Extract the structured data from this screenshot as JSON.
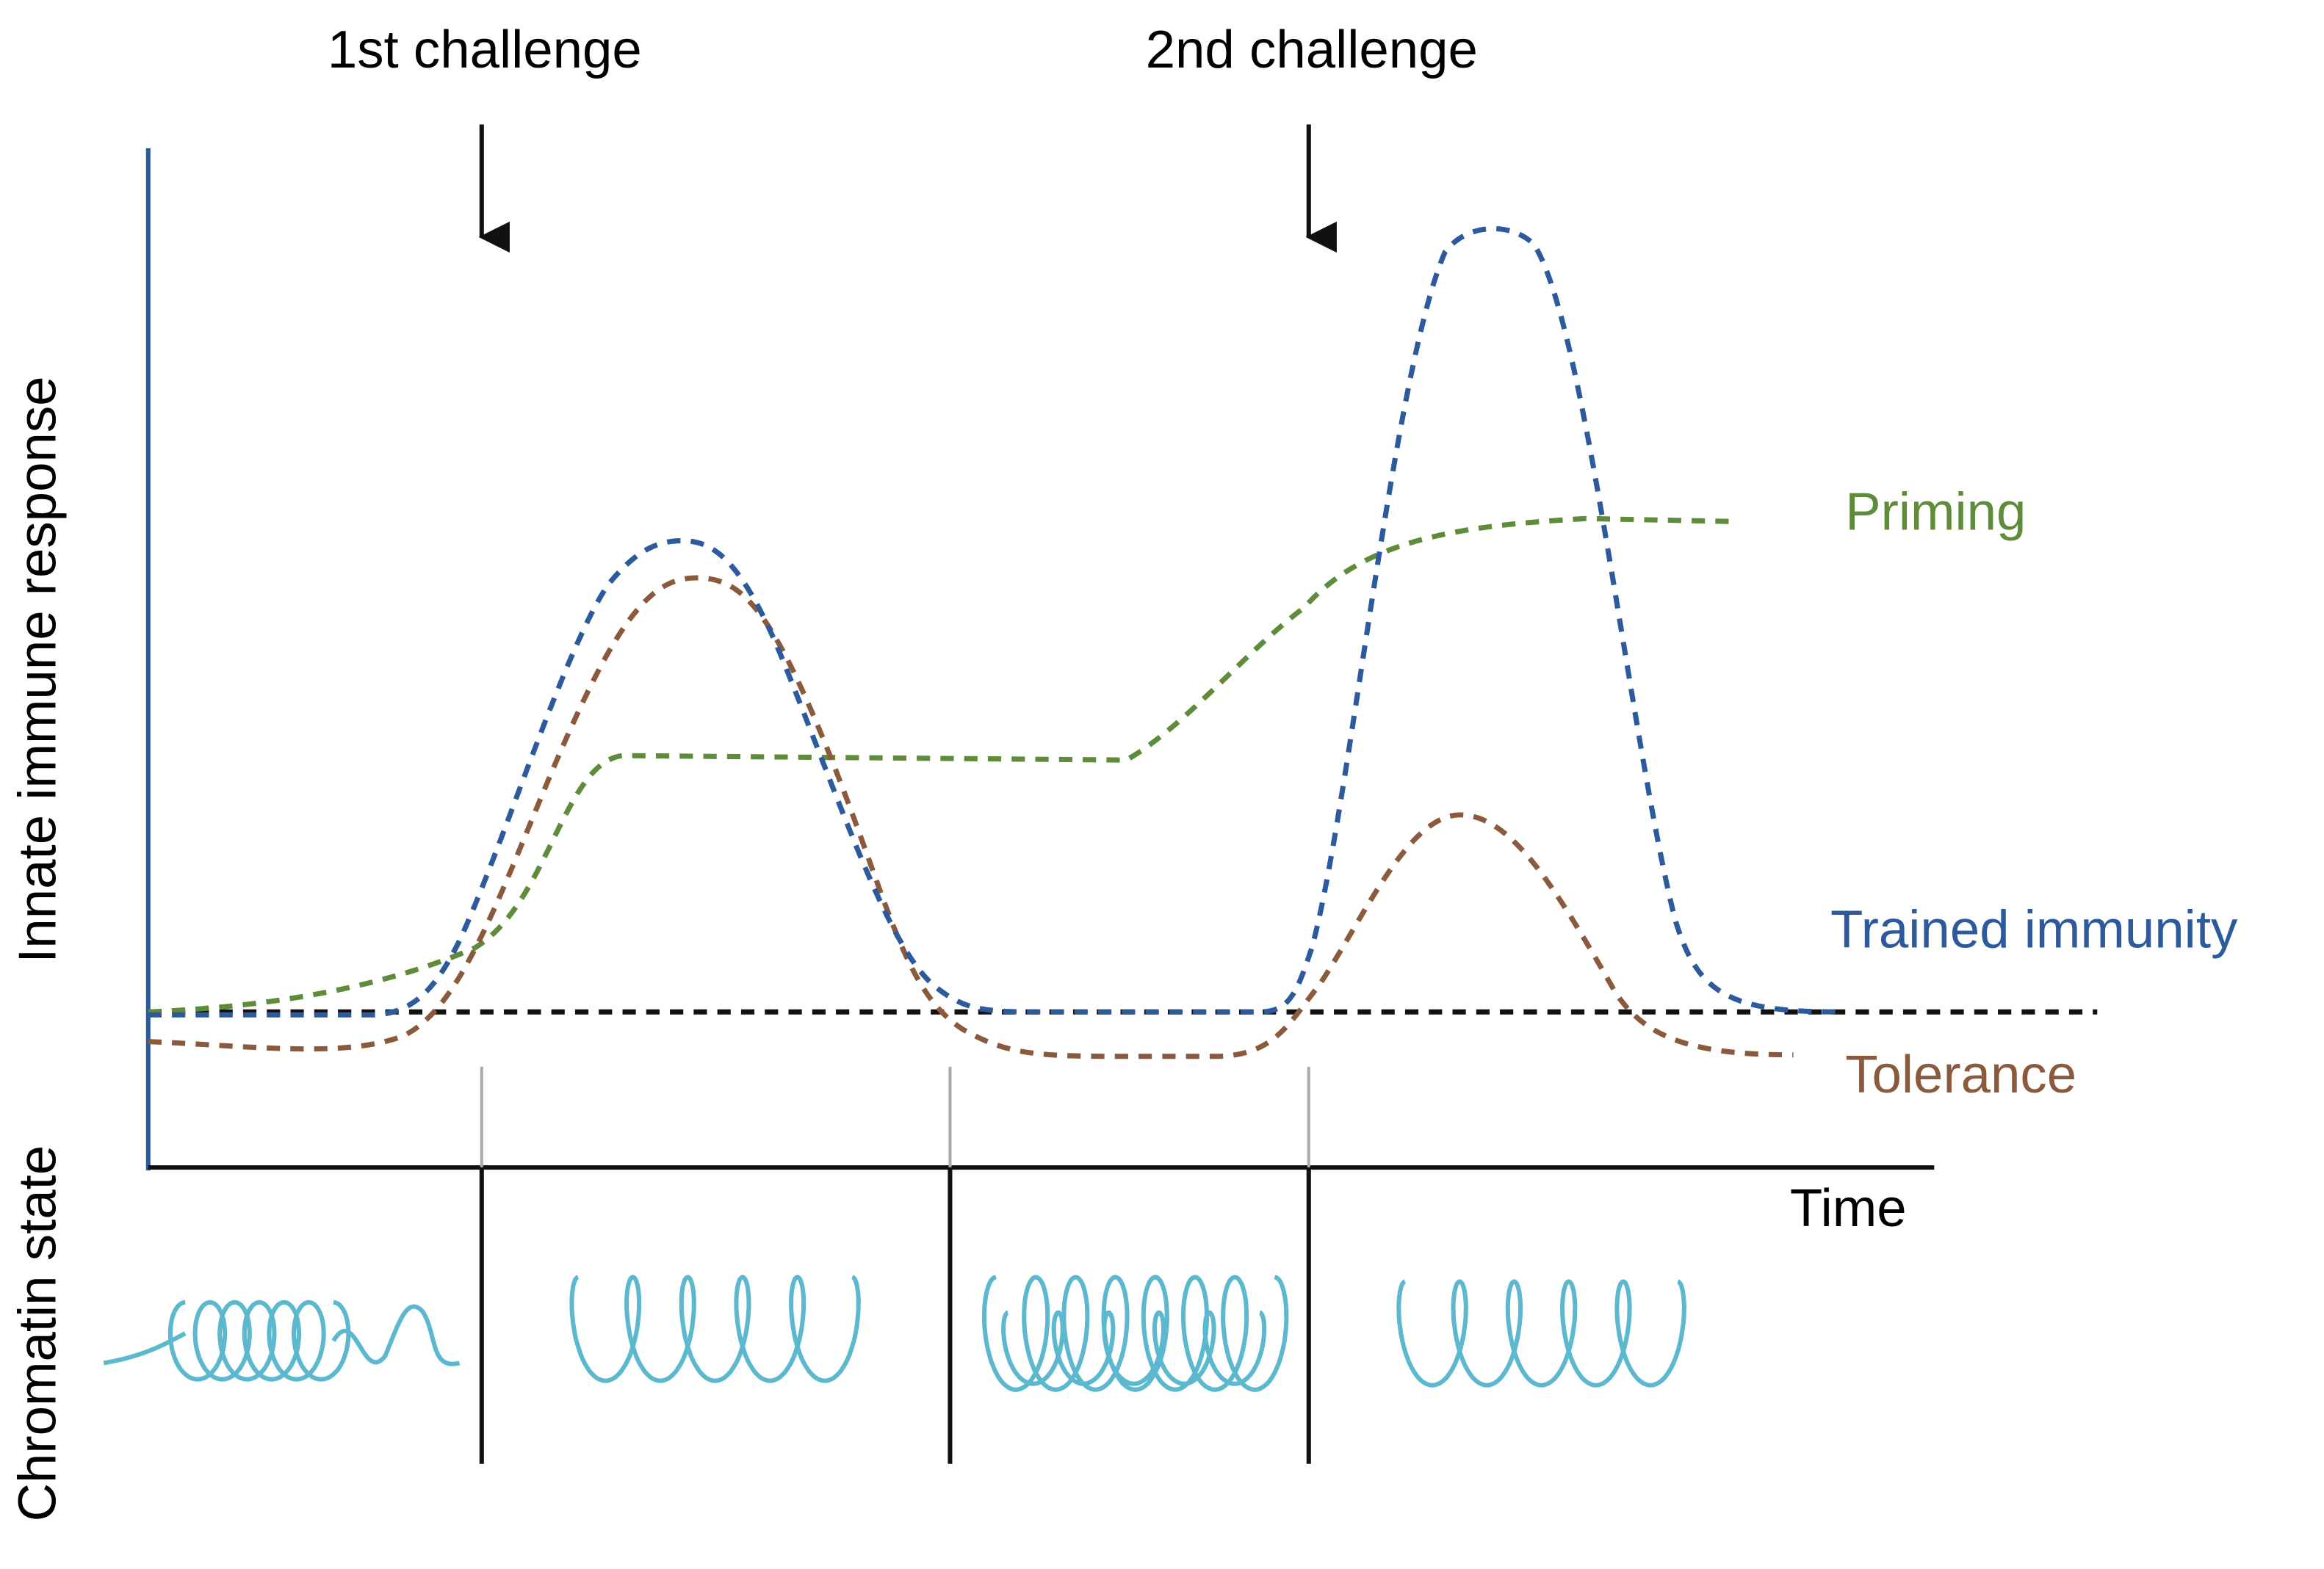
{
  "challenges": [
    "1st challenge",
    "2nd challenge"
  ],
  "axes": {
    "y_label": "Innate immune response",
    "x_label": "Time",
    "bottom_label": "Chromatin state"
  },
  "curves": {
    "priming": "Priming",
    "trained": "Trained immunity",
    "tolerance": "Tolerance"
  }
}
